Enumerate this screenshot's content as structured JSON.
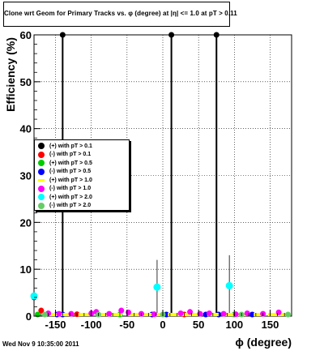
{
  "chart_data": {
    "type": "scatter",
    "title": "Clone wrt Geom for Primary Tracks vs. φ (degree) at |η| <= 1.0 at pT > 0.11",
    "xlabel": "ϕ (degree)",
    "ylabel": "Efficiency (%)",
    "xlim": [
      -180,
      180
    ],
    "ylim": [
      0,
      60
    ],
    "xticks": [
      -150,
      -100,
      -50,
      0,
      50,
      100,
      150
    ],
    "yticks": [
      0,
      10,
      20,
      30,
      40,
      50,
      60
    ],
    "grid": true,
    "legend_position": "middle-left",
    "series": [
      {
        "name": "(+) with pT > 0.1",
        "color": "#000000",
        "points": [
          [
            -140,
            60
          ],
          [
            12,
            60
          ],
          [
            75,
            60
          ],
          [
            -180,
            4
          ]
        ],
        "errors": [
          [
            -140,
            0,
            60
          ],
          [
            12,
            0,
            60
          ],
          [
            75,
            0,
            60
          ],
          [
            -180,
            0,
            4
          ]
        ]
      },
      {
        "name": "(-) with pT > 0.1",
        "color": "#ff0000",
        "points": [
          [
            -170,
            1.2
          ],
          [
            -120,
            0.4
          ],
          [
            30,
            0.3
          ]
        ]
      },
      {
        "name": "(+) with pT > 0.5",
        "color": "#00cc00",
        "points": [
          [
            -175,
            0.2
          ],
          [
            -60,
            0.3
          ],
          [
            100,
            0.2
          ]
        ]
      },
      {
        "name": "(-) with pT > 0.5",
        "color": "#0000ff",
        "points": [
          [
            -148,
            0.1
          ],
          [
            -140,
            0.1
          ],
          [
            -15,
            0.1
          ],
          [
            5,
            0.1
          ],
          [
            60,
            0.1
          ],
          [
            78,
            0.1
          ],
          [
            125,
            0.1
          ]
        ]
      },
      {
        "name": "(+) with pT > 1.0",
        "color": "#ffff00",
        "points": [
          [
            -155,
            0.3
          ],
          [
            -135,
            0.3
          ],
          [
            -110,
            0.3
          ],
          [
            -85,
            0.3
          ],
          [
            -65,
            0.3
          ],
          [
            -40,
            0.3
          ],
          [
            -25,
            0.3
          ],
          [
            -10,
            0.3
          ],
          [
            15,
            0.3
          ],
          [
            30,
            0.3
          ],
          [
            45,
            0.3
          ],
          [
            70,
            0.3
          ],
          [
            95,
            0.3
          ],
          [
            110,
            0.3
          ],
          [
            135,
            0.3
          ],
          [
            155,
            0.3
          ],
          [
            170,
            0.3
          ]
        ]
      },
      {
        "name": "(-) with pT > 1.0",
        "color": "#ff00ff",
        "points": [
          [
            -160,
            0.6
          ],
          [
            -145,
            0.5
          ],
          [
            -128,
            0.5
          ],
          [
            -100,
            0.6
          ],
          [
            -93,
            0.9
          ],
          [
            -75,
            0.5
          ],
          [
            -58,
            1.2
          ],
          [
            -48,
            0.8
          ],
          [
            -30,
            0.5
          ],
          [
            -12,
            0.4
          ],
          [
            25,
            0.6
          ],
          [
            38,
            0.9
          ],
          [
            52,
            0.5
          ],
          [
            65,
            0.6
          ],
          [
            85,
            0.5
          ],
          [
            102,
            0.4
          ],
          [
            118,
            0.6
          ],
          [
            140,
            0.5
          ],
          [
            162,
            0.8
          ]
        ]
      },
      {
        "name": "(+) with pT > 2.0",
        "color": "#00ffff",
        "points": [
          [
            -180,
            4.3
          ],
          [
            -8,
            6.2
          ],
          [
            93,
            6.5
          ]
        ],
        "errors": [
          [
            -180,
            0,
            8
          ],
          [
            -8,
            0,
            12
          ],
          [
            93,
            0,
            13
          ]
        ]
      },
      {
        "name": "(-) with pT > 2.0",
        "color": "#66cc66",
        "points": [
          [
            -165,
            0.2
          ],
          [
            -90,
            0.2
          ],
          [
            0,
            0.2
          ],
          [
            110,
            0.2
          ],
          [
            175,
            0.2
          ]
        ]
      }
    ]
  },
  "footer": {
    "timestamp": "Wed Nov  9 10:35:00 2011"
  }
}
